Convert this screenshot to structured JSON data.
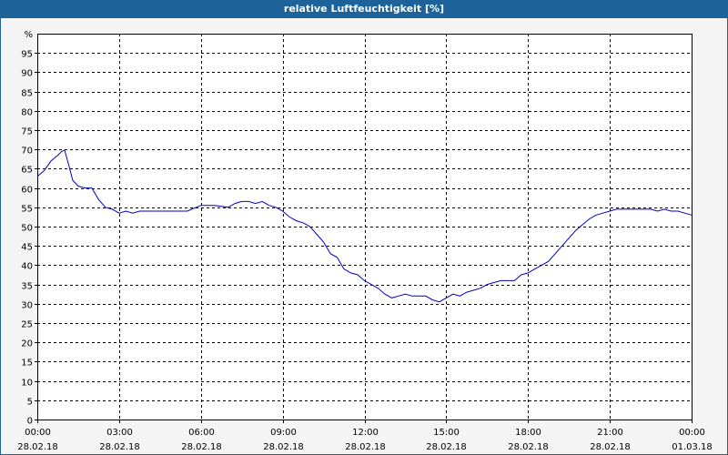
{
  "window": {
    "title": "relative Luftfeuchtigkeit [%]"
  },
  "colors": {
    "titlebar": "#1d6299",
    "background": "#f4f4f4",
    "series": "#0000cc",
    "grid": "#000000"
  },
  "chart_data": {
    "type": "line",
    "title": "relative Luftfeuchtigkeit [%]",
    "ylabel": "%",
    "xlabel": "",
    "ylim": [
      0,
      100
    ],
    "yticks": [
      0,
      5,
      10,
      15,
      20,
      25,
      30,
      35,
      40,
      45,
      50,
      55,
      60,
      65,
      70,
      75,
      80,
      85,
      90,
      95
    ],
    "xlim_hours": [
      0,
      24
    ],
    "xticks": [
      {
        "hour": 0,
        "time": "00:00",
        "date": "28.02.18"
      },
      {
        "hour": 3,
        "time": "03:00",
        "date": "28.02.18"
      },
      {
        "hour": 6,
        "time": "06:00",
        "date": "28.02.18"
      },
      {
        "hour": 9,
        "time": "09:00",
        "date": "28.02.18"
      },
      {
        "hour": 12,
        "time": "12:00",
        "date": "28.02.18"
      },
      {
        "hour": 15,
        "time": "15:00",
        "date": "28.02.18"
      },
      {
        "hour": 18,
        "time": "18:00",
        "date": "28.02.18"
      },
      {
        "hour": 21,
        "time": "21:00",
        "date": "28.02.18"
      },
      {
        "hour": 24,
        "time": "00:00",
        "date": "01.03.18"
      }
    ],
    "grid": true,
    "series": [
      {
        "x": [
          0,
          0.25,
          0.5,
          0.75,
          0.9,
          1.0,
          1.15,
          1.3,
          1.5,
          1.75,
          2.0,
          2.25,
          2.5,
          2.75,
          3.0,
          3.25,
          3.5,
          3.75,
          4.0,
          4.5,
          5.0,
          5.5,
          6.0,
          6.5,
          7.0,
          7.25,
          7.5,
          7.75,
          8.0,
          8.25,
          8.5,
          8.75,
          9.0,
          9.25,
          9.5,
          9.75,
          10.0,
          10.25,
          10.5,
          10.75,
          11.0,
          11.25,
          11.5,
          11.75,
          12.0,
          12.25,
          12.5,
          12.75,
          13.0,
          13.25,
          13.5,
          13.75,
          14.0,
          14.25,
          14.5,
          14.75,
          15.0,
          15.25,
          15.5,
          15.75,
          16.0,
          16.25,
          16.5,
          16.75,
          17.0,
          17.25,
          17.5,
          17.75,
          18.0,
          18.25,
          18.5,
          18.75,
          19.0,
          19.25,
          19.5,
          19.75,
          20.0,
          20.25,
          20.5,
          20.75,
          21.0,
          21.25,
          21.5,
          21.75,
          22.0,
          22.25,
          22.5,
          22.75,
          23.0,
          23.25,
          23.5,
          23.75,
          24.0
        ],
        "y": [
          63,
          64.5,
          67,
          68.5,
          69.5,
          69.8,
          66,
          62,
          60.5,
          60,
          60,
          57,
          55,
          54.5,
          53.5,
          54,
          53.5,
          54,
          54,
          54,
          54,
          54,
          55.5,
          55.5,
          55,
          56,
          56.5,
          56.5,
          56,
          56.5,
          55.5,
          55,
          54,
          52.5,
          51.5,
          51,
          50,
          48,
          46,
          43,
          42,
          39,
          38,
          37.5,
          36,
          35,
          34,
          32.5,
          31.5,
          32,
          32.5,
          32,
          32,
          32,
          31,
          30.5,
          31.5,
          32.5,
          32,
          33,
          33.5,
          34,
          35,
          35.5,
          36,
          36,
          36,
          37.5,
          38,
          39,
          40,
          41,
          43,
          45,
          47,
          49,
          50.5,
          52,
          53,
          53.5,
          54,
          54.5,
          54.5,
          54.5,
          54.5,
          54.5,
          54.5,
          54,
          54.5,
          54,
          54,
          53.5,
          53
        ]
      }
    ]
  }
}
